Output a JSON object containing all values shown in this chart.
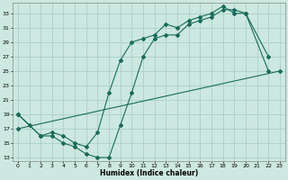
{
  "title": "",
  "xlabel": "Humidex (Indice chaleur)",
  "bg_color": "#cce8e0",
  "grid_color": "#aacfc8",
  "line_color": "#1a6b5a",
  "xlim": [
    -0.5,
    23.5
  ],
  "ylim": [
    12.5,
    34.5
  ],
  "xticks": [
    0,
    1,
    2,
    3,
    4,
    5,
    6,
    7,
    8,
    9,
    10,
    11,
    12,
    13,
    14,
    15,
    16,
    17,
    18,
    19,
    20,
    21,
    22,
    23
  ],
  "yticks": [
    13,
    15,
    17,
    19,
    21,
    23,
    25,
    27,
    29,
    31,
    33
  ],
  "line1_x": [
    0,
    1,
    2,
    3,
    4,
    5,
    6,
    7,
    8,
    9,
    10,
    11,
    12,
    13,
    14,
    15,
    16,
    17,
    18,
    19,
    20,
    22
  ],
  "line1_y": [
    19,
    17.5,
    16,
    16,
    15,
    14.5,
    13.5,
    13,
    13,
    17.5,
    22,
    27,
    29.5,
    30,
    30,
    31.5,
    32,
    32.5,
    33.5,
    33.5,
    33,
    27
  ],
  "line2_x": [
    0,
    2,
    3,
    4,
    5,
    6,
    7,
    8,
    9,
    10,
    11,
    12,
    13,
    14,
    15,
    16,
    17,
    18,
    19,
    20,
    22
  ],
  "line2_y": [
    19,
    16,
    16.5,
    16,
    15,
    14.5,
    16.5,
    22,
    26.5,
    29,
    29.5,
    30,
    31.5,
    31,
    32,
    32.5,
    33,
    34,
    33,
    33,
    25
  ],
  "line3_x": [
    0,
    23
  ],
  "line3_y": [
    17,
    25
  ]
}
